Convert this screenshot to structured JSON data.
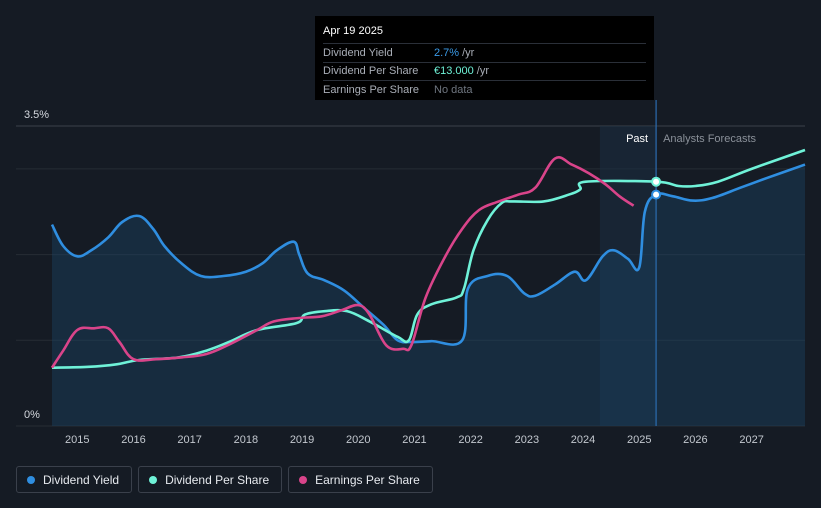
{
  "tooltip": {
    "date": "Apr 19 2025",
    "rows": [
      {
        "label": "Dividend Yield",
        "value": "2.7%",
        "unit": "/yr",
        "color": "#3b9be8"
      },
      {
        "label": "Dividend Per Share",
        "value": "€13.000",
        "unit": "/yr",
        "color": "#6ff2d8"
      },
      {
        "label": "Earnings Per Share",
        "value": "No data",
        "unit": "",
        "color": "#6f7680"
      }
    ]
  },
  "legend": [
    {
      "label": "Dividend Yield",
      "color": "#2f8ee0"
    },
    {
      "label": "Dividend Per Share",
      "color": "#6ff2d8"
    },
    {
      "label": "Earnings Per Share",
      "color": "#d9448a"
    }
  ],
  "chart_data": {
    "type": "line",
    "y_tick_labels": [
      "3.5%",
      "0%"
    ],
    "ylim": [
      0,
      3.5
    ],
    "xlim": [
      2014.55,
      2027.95
    ],
    "x_tick_labels": [
      "2015",
      "2016",
      "2017",
      "2018",
      "2019",
      "2020",
      "2021",
      "2022",
      "2023",
      "2024",
      "2025",
      "2026",
      "2027"
    ],
    "forecast_start": 2025.3,
    "past_region_start": 2024.3,
    "past_label": "Past",
    "forecast_label": "Analysts Forecasts",
    "grid": true,
    "colors": {
      "yield": "#2f8ee0",
      "dps": "#6ff2d8",
      "eps": "#d9448a"
    },
    "series": [
      {
        "name": "Dividend Yield",
        "key": "yield",
        "points": [
          [
            2014.55,
            2.35
          ],
          [
            2014.75,
            2.1
          ],
          [
            2015.0,
            1.98
          ],
          [
            2015.25,
            2.05
          ],
          [
            2015.55,
            2.2
          ],
          [
            2015.8,
            2.38
          ],
          [
            2016.1,
            2.45
          ],
          [
            2016.35,
            2.3
          ],
          [
            2016.55,
            2.1
          ],
          [
            2016.85,
            1.9
          ],
          [
            2017.2,
            1.75
          ],
          [
            2017.6,
            1.75
          ],
          [
            2018.0,
            1.8
          ],
          [
            2018.3,
            1.9
          ],
          [
            2018.55,
            2.05
          ],
          [
            2018.85,
            2.15
          ],
          [
            2018.95,
            2.0
          ],
          [
            2019.1,
            1.78
          ],
          [
            2019.4,
            1.7
          ],
          [
            2019.75,
            1.58
          ],
          [
            2020.1,
            1.38
          ],
          [
            2020.45,
            1.18
          ],
          [
            2020.7,
            1.0
          ],
          [
            2020.95,
            0.98
          ],
          [
            2021.3,
            0.99
          ],
          [
            2021.85,
            1.0
          ],
          [
            2021.95,
            1.6
          ],
          [
            2022.3,
            1.75
          ],
          [
            2022.65,
            1.75
          ],
          [
            2022.95,
            1.55
          ],
          [
            2023.15,
            1.52
          ],
          [
            2023.5,
            1.65
          ],
          [
            2023.85,
            1.8
          ],
          [
            2024.05,
            1.7
          ],
          [
            2024.35,
            1.98
          ],
          [
            2024.55,
            2.05
          ],
          [
            2024.8,
            1.95
          ],
          [
            2025.0,
            1.85
          ],
          [
            2025.1,
            2.5
          ],
          [
            2025.3,
            2.7
          ],
          [
            2025.6,
            2.68
          ],
          [
            2025.95,
            2.63
          ],
          [
            2026.3,
            2.66
          ],
          [
            2026.8,
            2.78
          ],
          [
            2027.3,
            2.9
          ],
          [
            2027.95,
            3.05
          ]
        ]
      },
      {
        "name": "Dividend Per Share",
        "key": "dps",
        "points": [
          [
            2014.55,
            0.68
          ],
          [
            2015.2,
            0.69
          ],
          [
            2015.7,
            0.72
          ],
          [
            2016.1,
            0.77
          ],
          [
            2016.8,
            0.8
          ],
          [
            2017.3,
            0.88
          ],
          [
            2017.7,
            0.98
          ],
          [
            2018.2,
            1.12
          ],
          [
            2018.9,
            1.2
          ],
          [
            2019.05,
            1.3
          ],
          [
            2019.4,
            1.34
          ],
          [
            2019.8,
            1.34
          ],
          [
            2020.2,
            1.22
          ],
          [
            2020.7,
            1.04
          ],
          [
            2020.9,
            1.0
          ],
          [
            2021.05,
            1.3
          ],
          [
            2021.3,
            1.42
          ],
          [
            2021.75,
            1.5
          ],
          [
            2021.88,
            1.6
          ],
          [
            2022.05,
            2.05
          ],
          [
            2022.3,
            2.4
          ],
          [
            2022.55,
            2.6
          ],
          [
            2022.75,
            2.62
          ],
          [
            2023.3,
            2.62
          ],
          [
            2023.75,
            2.7
          ],
          [
            2023.95,
            2.76
          ],
          [
            2024.05,
            2.85
          ],
          [
            2025.3,
            2.85
          ],
          [
            2025.7,
            2.8
          ],
          [
            2026.0,
            2.8
          ],
          [
            2026.4,
            2.85
          ],
          [
            2027.0,
            3.0
          ],
          [
            2027.95,
            3.22
          ]
        ]
      },
      {
        "name": "Earnings Per Share",
        "key": "eps",
        "points": [
          [
            2014.55,
            0.68
          ],
          [
            2014.75,
            0.88
          ],
          [
            2015.0,
            1.12
          ],
          [
            2015.3,
            1.14
          ],
          [
            2015.55,
            1.14
          ],
          [
            2015.75,
            0.98
          ],
          [
            2016.0,
            0.78
          ],
          [
            2016.4,
            0.78
          ],
          [
            2016.85,
            0.8
          ],
          [
            2017.3,
            0.84
          ],
          [
            2017.7,
            0.95
          ],
          [
            2018.2,
            1.12
          ],
          [
            2018.5,
            1.22
          ],
          [
            2018.95,
            1.26
          ],
          [
            2019.35,
            1.28
          ],
          [
            2019.7,
            1.35
          ],
          [
            2020.0,
            1.41
          ],
          [
            2020.2,
            1.3
          ],
          [
            2020.5,
            0.94
          ],
          [
            2020.8,
            0.9
          ],
          [
            2020.95,
            0.95
          ],
          [
            2021.2,
            1.5
          ],
          [
            2021.55,
            1.98
          ],
          [
            2021.85,
            2.3
          ],
          [
            2022.15,
            2.52
          ],
          [
            2022.5,
            2.62
          ],
          [
            2022.85,
            2.7
          ],
          [
            2023.15,
            2.78
          ],
          [
            2023.5,
            3.12
          ],
          [
            2023.8,
            3.05
          ],
          [
            2024.1,
            2.95
          ],
          [
            2024.4,
            2.82
          ],
          [
            2024.65,
            2.68
          ],
          [
            2024.9,
            2.57
          ]
        ]
      }
    ]
  }
}
